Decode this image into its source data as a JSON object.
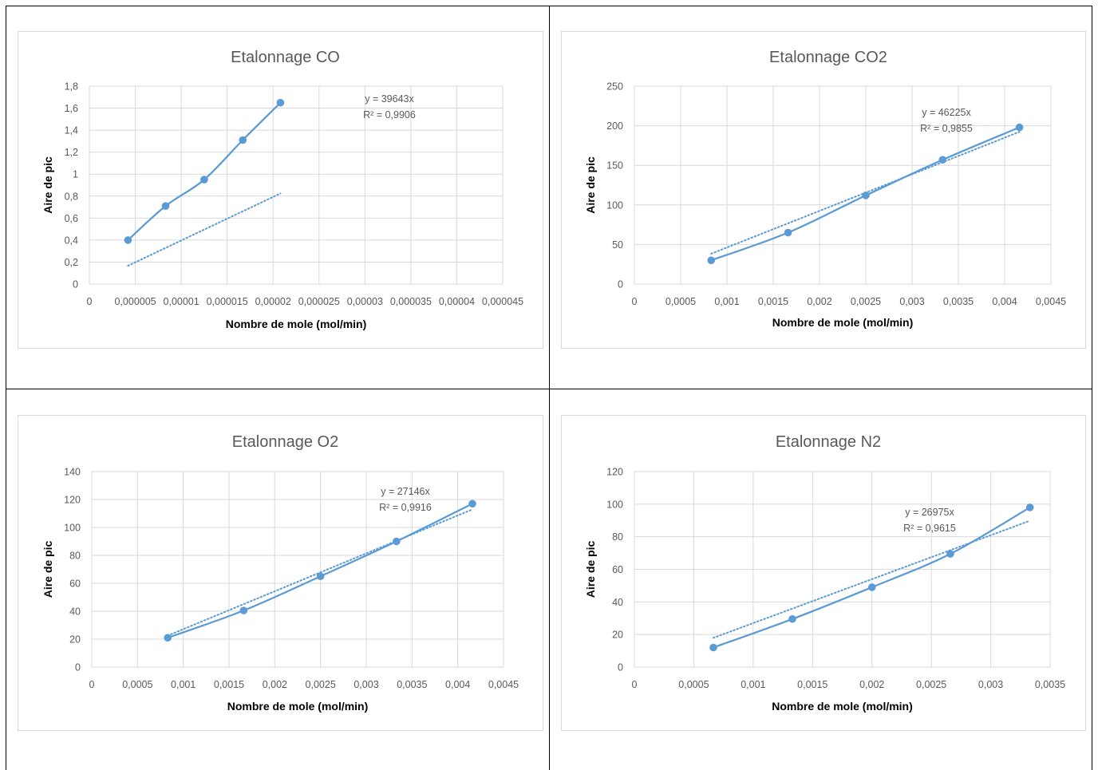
{
  "colors": {
    "series": "#5b9bd5",
    "grid": "#d9d9d9",
    "text": "#595959"
  },
  "chart_data": [
    {
      "type": "scatter",
      "title": "Etalonnage CO",
      "xlabel": "Nombre de mole (mol/min)",
      "ylabel": "Aire de pic",
      "xlim": [
        0,
        4.5e-05
      ],
      "ylim": [
        0,
        1.8
      ],
      "xticks": [
        0,
        5e-06,
        1e-05,
        1.5e-05,
        2e-05,
        2.5e-05,
        3e-05,
        3.5e-05,
        4e-05,
        4.5e-05
      ],
      "xtick_labels": [
        "0",
        "0,000005",
        "0,00001",
        "0,000015",
        "0,00002",
        "0,000025",
        "0,00003",
        "0,000035",
        "0,00004",
        "0,000045"
      ],
      "yticks": [
        0,
        0.2,
        0.4,
        0.6,
        0.8,
        1,
        1.2,
        1.4,
        1.6,
        1.8
      ],
      "ytick_labels": [
        "0",
        "0,2",
        "0,4",
        "0,6",
        "0,8",
        "1",
        "1,2",
        "1,4",
        "1,6",
        "1,8"
      ],
      "grid": true,
      "series": [
        {
          "x": [
            4.2e-06,
            8.3e-06,
            1.25e-05,
            1.67e-05,
            2.08e-05
          ],
          "y": [
            0.4,
            0.71,
            0.95,
            1.31,
            1.65
          ],
          "line": "smooth",
          "markers": true
        }
      ],
      "trendline": {
        "slope": 39643,
        "type": "linear-through-origin",
        "style": "dotted"
      },
      "equation": [
        "y = 39643x",
        "R² = 0,9906"
      ]
    },
    {
      "type": "scatter",
      "title": "Etalonnage CO2",
      "xlabel": "Nombre de mole (mol/min)",
      "ylabel": "Aire de pic",
      "xlim": [
        0,
        0.0045
      ],
      "ylim": [
        0,
        250
      ],
      "xticks": [
        0,
        0.0005,
        0.001,
        0.0015,
        0.002,
        0.0025,
        0.003,
        0.0035,
        0.004,
        0.0045
      ],
      "xtick_labels": [
        "0",
        "0,0005",
        "0,001",
        "0,0015",
        "0,002",
        "0,0025",
        "0,003",
        "0,0035",
        "0,004",
        "0,0045"
      ],
      "yticks": [
        0,
        50,
        100,
        150,
        200,
        250
      ],
      "ytick_labels": [
        "0",
        "50",
        "100",
        "150",
        "200",
        "250"
      ],
      "grid": true,
      "series": [
        {
          "x": [
            0.00083,
            0.00166,
            0.0025,
            0.00333,
            0.00416
          ],
          "y": [
            30,
            65,
            112,
            157,
            198
          ],
          "line": "smooth",
          "markers": true
        }
      ],
      "trendline": {
        "slope": 46225,
        "type": "linear-through-origin",
        "style": "dotted"
      },
      "equation": [
        "y = 46225x",
        "R² = 0,9855"
      ]
    },
    {
      "type": "scatter",
      "title": "Etalonnage O2",
      "xlabel": "Nombre de mole (mol/min)",
      "ylabel": "Aire de pic",
      "xlim": [
        0,
        0.0045
      ],
      "ylim": [
        0,
        140
      ],
      "xticks": [
        0,
        0.0005,
        0.001,
        0.0015,
        0.002,
        0.0025,
        0.003,
        0.0035,
        0.004,
        0.0045
      ],
      "xtick_labels": [
        "0",
        "0,0005",
        "0,001",
        "0,0015",
        "0,002",
        "0,0025",
        "0,003",
        "0,0035",
        "0,004",
        "0,0045"
      ],
      "yticks": [
        0,
        20,
        40,
        60,
        80,
        100,
        120,
        140
      ],
      "ytick_labels": [
        "0",
        "20",
        "40",
        "60",
        "80",
        "100",
        "120",
        "140"
      ],
      "grid": true,
      "series": [
        {
          "x": [
            0.00083,
            0.00166,
            0.0025,
            0.00333,
            0.00416
          ],
          "y": [
            21,
            40.5,
            65,
            90,
            117
          ],
          "line": "smooth",
          "markers": true
        }
      ],
      "trendline": {
        "slope": 27146,
        "type": "linear-through-origin",
        "style": "dotted"
      },
      "equation": [
        "y = 27146x",
        "R² = 0,9916"
      ]
    },
    {
      "type": "scatter",
      "title": "Etalonnage N2",
      "xlabel": "Nombre de mole (mol/min)",
      "ylabel": "Aire de pic",
      "xlim": [
        0,
        0.0035
      ],
      "ylim": [
        0,
        120
      ],
      "xticks": [
        0,
        0.0005,
        0.001,
        0.0015,
        0.002,
        0.0025,
        0.003,
        0.0035
      ],
      "xtick_labels": [
        "0",
        "0,0005",
        "0,001",
        "0,0015",
        "0,002",
        "0,0025",
        "0,003",
        "0,0035"
      ],
      "yticks": [
        0,
        20,
        40,
        60,
        80,
        100,
        120
      ],
      "ytick_labels": [
        "0",
        "20",
        "40",
        "60",
        "80",
        "100",
        "120"
      ],
      "grid": true,
      "series": [
        {
          "x": [
            0.000665,
            0.00133,
            0.002,
            0.00266,
            0.00333
          ],
          "y": [
            12,
            29.5,
            49,
            69.5,
            98
          ],
          "line": "smooth",
          "markers": true
        }
      ],
      "trendline": {
        "slope": 26975,
        "type": "linear-through-origin",
        "style": "dotted"
      },
      "equation": [
        "y = 26975x",
        "R² = 0,9615"
      ]
    }
  ]
}
